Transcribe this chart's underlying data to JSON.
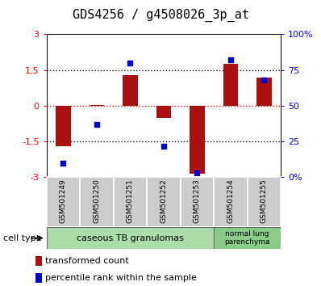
{
  "title": "GDS4256 / g4508026_3p_at",
  "samples": [
    "GSM501249",
    "GSM501250",
    "GSM501251",
    "GSM501252",
    "GSM501253",
    "GSM501254",
    "GSM501255"
  ],
  "transformed_counts": [
    -1.7,
    0.05,
    1.3,
    -0.5,
    -2.85,
    1.75,
    1.2
  ],
  "percentile_ranks": [
    10,
    37,
    80,
    22,
    3,
    82,
    68
  ],
  "bar_color": "#aa1111",
  "dot_color": "#0000cc",
  "ylim_left": [
    -3,
    3
  ],
  "ylim_right": [
    0,
    100
  ],
  "yticks_left": [
    -3,
    -1.5,
    0,
    1.5,
    3
  ],
  "yticks_right": [
    0,
    25,
    50,
    75,
    100
  ],
  "ytick_labels_left": [
    "-3",
    "-1.5",
    "0",
    "1.5",
    "3"
  ],
  "ytick_labels_right": [
    "0%",
    "25",
    "50",
    "75",
    "100%"
  ],
  "zero_line_color": "red",
  "dotted_line_color": "black",
  "group1_label": "caseous TB granulomas",
  "group2_label": "normal lung\nparenchyma",
  "group1_color": "#aaddaa",
  "group2_color": "#88cc88",
  "cell_type_label": "cell type",
  "legend_bar_label": "transformed count",
  "legend_dot_label": "percentile rank within the sample",
  "plot_bg_color": "#ffffff",
  "tick_label_fontsize": 8,
  "title_fontsize": 11,
  "sample_label_fontsize": 6.5,
  "group_label_fontsize": 8,
  "group2_label_fontsize": 6.5,
  "legend_fontsize": 8,
  "celltype_fontsize": 8
}
